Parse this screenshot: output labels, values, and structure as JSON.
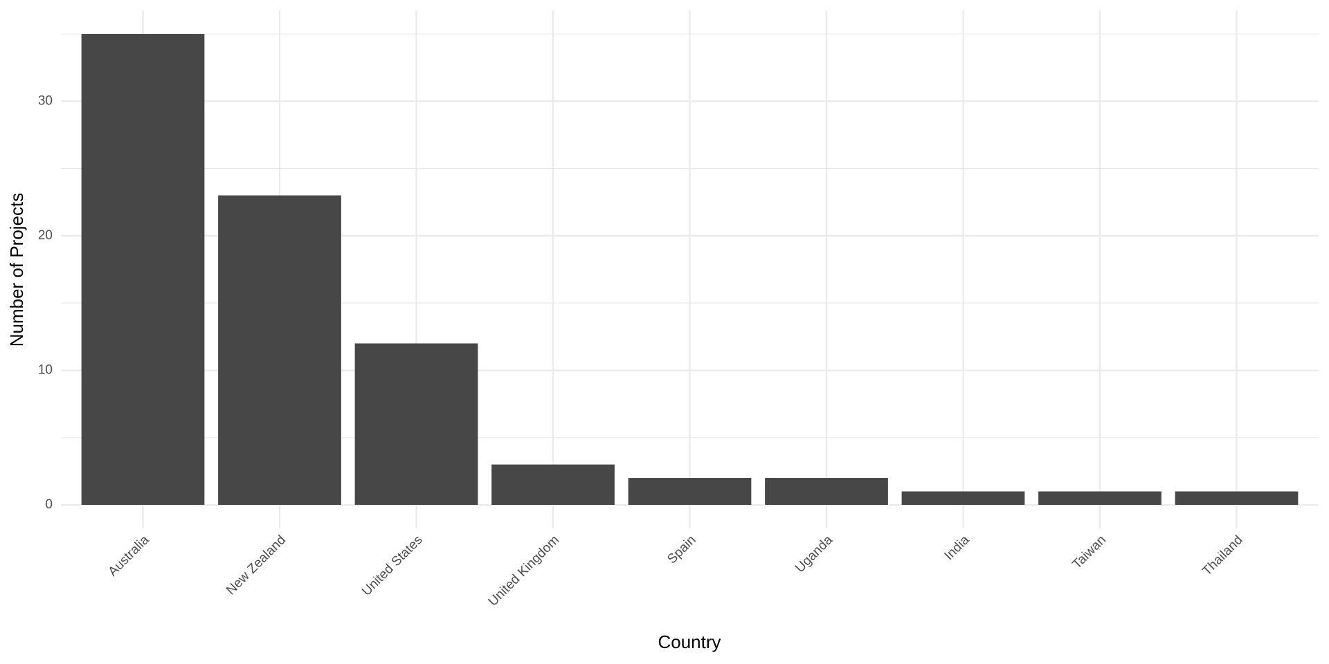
{
  "chart_data": {
    "type": "bar",
    "x_label": "Country",
    "y_label": "Number of Projects",
    "categories": [
      "Australia",
      "New Zealand",
      "United States",
      "United Kingdom",
      "Spain",
      "Uganda",
      "India",
      "Taiwan",
      "Thailand"
    ],
    "values": [
      35,
      23,
      12,
      3,
      2,
      2,
      1,
      1,
      1
    ],
    "color": "#474747",
    "ylim": [
      -1.75,
      36.75
    ],
    "yticks": [
      0,
      10,
      20,
      30
    ],
    "yminor": [
      5,
      15,
      25,
      35
    ],
    "grid": true
  }
}
